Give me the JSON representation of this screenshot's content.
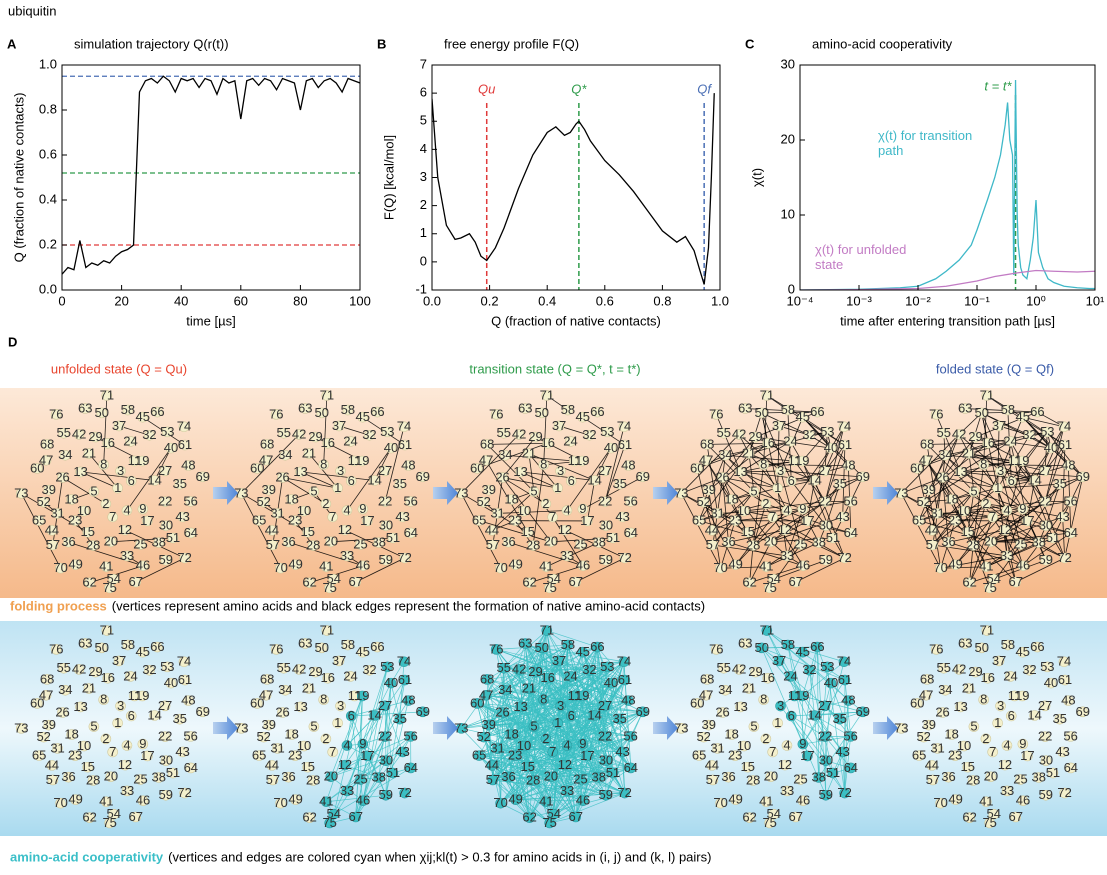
{
  "title": "ubiquitin",
  "chart_data": [
    {
      "type": "line",
      "label": "A",
      "title": "simulation trajectory Q(r(t))",
      "xlabel": "time [µs]",
      "ylabel": "Q (fraction of native contacts)",
      "x": [
        0,
        2,
        4,
        6,
        8,
        10,
        12,
        14,
        16,
        18,
        20,
        22,
        24,
        26,
        28,
        30,
        32,
        34,
        36,
        38,
        40,
        42,
        44,
        46,
        48,
        50,
        52,
        54,
        56,
        58,
        60,
        62,
        64,
        66,
        68,
        70,
        72,
        74,
        76,
        78,
        80,
        82,
        84,
        86,
        88,
        90,
        92,
        94,
        96,
        98,
        100
      ],
      "values": [
        0.07,
        0.1,
        0.09,
        0.22,
        0.1,
        0.12,
        0.11,
        0.13,
        0.12,
        0.15,
        0.17,
        0.18,
        0.2,
        0.88,
        0.93,
        0.94,
        0.92,
        0.95,
        0.93,
        0.88,
        0.94,
        0.93,
        0.94,
        0.9,
        0.94,
        0.93,
        0.87,
        0.94,
        0.92,
        0.93,
        0.76,
        0.93,
        0.94,
        0.91,
        0.94,
        0.93,
        0.89,
        0.94,
        0.93,
        0.92,
        0.8,
        0.93,
        0.94,
        0.9,
        0.93,
        0.94,
        0.92,
        0.88,
        0.94,
        0.93,
        0.92
      ],
      "color": "#000000",
      "hlines": [
        {
          "value": 0.95,
          "color": "#4a6fb5"
        },
        {
          "value": 0.52,
          "color": "#2e9b4a"
        },
        {
          "value": 0.2,
          "color": "#e03a3a"
        }
      ],
      "xlim": [
        0,
        100
      ],
      "xticks": [
        0,
        20,
        40,
        60,
        80,
        100
      ],
      "ylim": [
        0,
        1
      ],
      "yticks": [
        {
          "value": 0,
          "label": "0.0"
        },
        0.2,
        0.4,
        0.6,
        0.8,
        {
          "value": 1,
          "label": "1.0"
        }
      ]
    },
    {
      "type": "line",
      "label": "B",
      "title": "free energy profile F(Q)",
      "xlabel": "Q (fraction of native contacts)",
      "ylabel": "F(Q) [kcal/mol]",
      "x": [
        0,
        0.02,
        0.05,
        0.08,
        0.1,
        0.13,
        0.15,
        0.17,
        0.19,
        0.22,
        0.25,
        0.3,
        0.35,
        0.4,
        0.43,
        0.46,
        0.48,
        0.5,
        0.51,
        0.53,
        0.55,
        0.6,
        0.65,
        0.7,
        0.75,
        0.8,
        0.85,
        0.88,
        0.91,
        0.93,
        0.945,
        0.96,
        0.97,
        0.98
      ],
      "values": [
        5.8,
        3.0,
        1.3,
        0.8,
        0.85,
        1.0,
        0.7,
        0.2,
        0.05,
        0.5,
        1.2,
        2.6,
        3.8,
        4.6,
        4.8,
        4.5,
        4.6,
        4.9,
        5.0,
        4.7,
        4.3,
        3.6,
        3.1,
        2.5,
        1.8,
        1.1,
        0.7,
        0.9,
        0.4,
        -0.3,
        -0.8,
        0.5,
        3.0,
        6.0
      ],
      "color": "#000000",
      "vlines": [
        {
          "value": 0.19,
          "label": "Qu",
          "color": "#e03a3a"
        },
        {
          "value": 0.51,
          "label": "Q*",
          "color": "#2e9b4a"
        },
        {
          "value": 0.945,
          "label": "Qf",
          "color": "#4a6fb5"
        }
      ],
      "xlim": [
        0,
        1
      ],
      "xticks": [
        {
          "value": 0,
          "label": "0.0"
        },
        0.2,
        0.4,
        0.6,
        0.8,
        {
          "value": 1,
          "label": "1.0"
        }
      ],
      "ylim": [
        -1,
        7
      ],
      "yticks": [
        -1,
        0,
        1,
        2,
        3,
        4,
        5,
        6,
        7
      ]
    },
    {
      "type": "line",
      "label": "C",
      "title": "amino-acid cooperativity",
      "xlabel": "time after entering transition path [µs]",
      "ylabel": "χ(t)",
      "xscale": "log",
      "series": [
        {
          "name": "χ(t) for transition path",
          "color": "#3fb8c8",
          "x": [
            0.0001,
            0.001,
            0.005,
            0.01,
            0.02,
            0.03,
            0.05,
            0.08,
            0.1,
            0.15,
            0.2,
            0.25,
            0.3,
            0.33,
            0.36,
            0.4,
            0.42,
            0.45,
            0.48,
            0.5,
            0.55,
            0.6,
            0.7,
            0.8,
            0.9,
            1.0,
            1.1,
            1.3,
            1.6,
            2,
            3,
            5,
            8,
            10
          ],
          "values": [
            0,
            0.1,
            0.3,
            0.5,
            1.5,
            2.5,
            4,
            6,
            8,
            12,
            15,
            18,
            22,
            25,
            20,
            18,
            2,
            28,
            10,
            6,
            3,
            2,
            1.5,
            4,
            7,
            12,
            5,
            3,
            1.5,
            1.0,
            0.5,
            0.3,
            0.2,
            0.2
          ]
        },
        {
          "name": "χ(t) for unfolded state",
          "color": "#c27bc4",
          "x": [
            0.0001,
            0.001,
            0.01,
            0.03,
            0.1,
            0.2,
            0.5,
            1,
            2,
            5,
            10
          ],
          "values": [
            0,
            0.05,
            0.2,
            0.5,
            1.2,
            1.8,
            2.3,
            2.6,
            2.5,
            2.4,
            2.5
          ]
        }
      ],
      "vlines": [
        {
          "value": 0.45,
          "label": "t = t*",
          "color": "#2e9b4a"
        }
      ],
      "xlim": [
        0.0001,
        10
      ],
      "xticks": [
        {
          "value": 0.0001,
          "label": "10⁻⁴"
        },
        {
          "value": 0.001,
          "label": "10⁻³"
        },
        {
          "value": 0.01,
          "label": "10⁻²"
        },
        {
          "value": 0.1,
          "label": "10⁻¹"
        },
        {
          "value": 1,
          "label": "10⁰"
        },
        {
          "value": 10,
          "label": "10¹"
        }
      ],
      "ylim": [
        0,
        30
      ],
      "yticks": [
        0,
        10,
        20,
        30
      ]
    }
  ],
  "panel_d": {
    "label": "D",
    "states": [
      {
        "text": "unfolded state (Q = Qu)",
        "color": "#e8452e"
      },
      {
        "text": "transition state (Q = Q*, t = t*)",
        "color": "#2e9b4a"
      },
      {
        "text": "folded state (Q = Qf)",
        "color": "#3a5ba8"
      }
    ],
    "rows": [
      {
        "caption_bold": "folding process",
        "bold_color": "#f0a050",
        "caption": "(vertices represent amino acids and black edges represent the formation of native amino-acid contacts)"
      },
      {
        "caption_bold": "amino-acid cooperativity",
        "bold_color": "#3bbfc8",
        "caption": "(vertices and edges are colored cyan when χij;kl(t) > 0.3 for amino acids in (i, j) and (k, l) pairs)"
      }
    ],
    "node_labels": [
      1,
      2,
      3,
      4,
      5,
      6,
      7,
      8,
      9,
      10,
      11,
      12,
      13,
      14,
      15,
      16,
      17,
      18,
      19,
      20,
      21,
      22,
      23,
      24,
      25,
      26,
      27,
      28,
      29,
      30,
      31,
      32,
      33,
      34,
      35,
      36,
      37,
      38,
      39,
      40,
      41,
      42,
      43,
      44,
      45,
      46,
      47,
      48,
      49,
      50,
      51,
      52,
      53,
      54,
      55,
      56,
      57,
      58,
      59,
      60,
      61,
      62,
      63,
      64,
      65,
      66,
      67,
      68,
      69,
      70,
      71,
      72,
      73,
      74,
      75,
      76
    ]
  }
}
